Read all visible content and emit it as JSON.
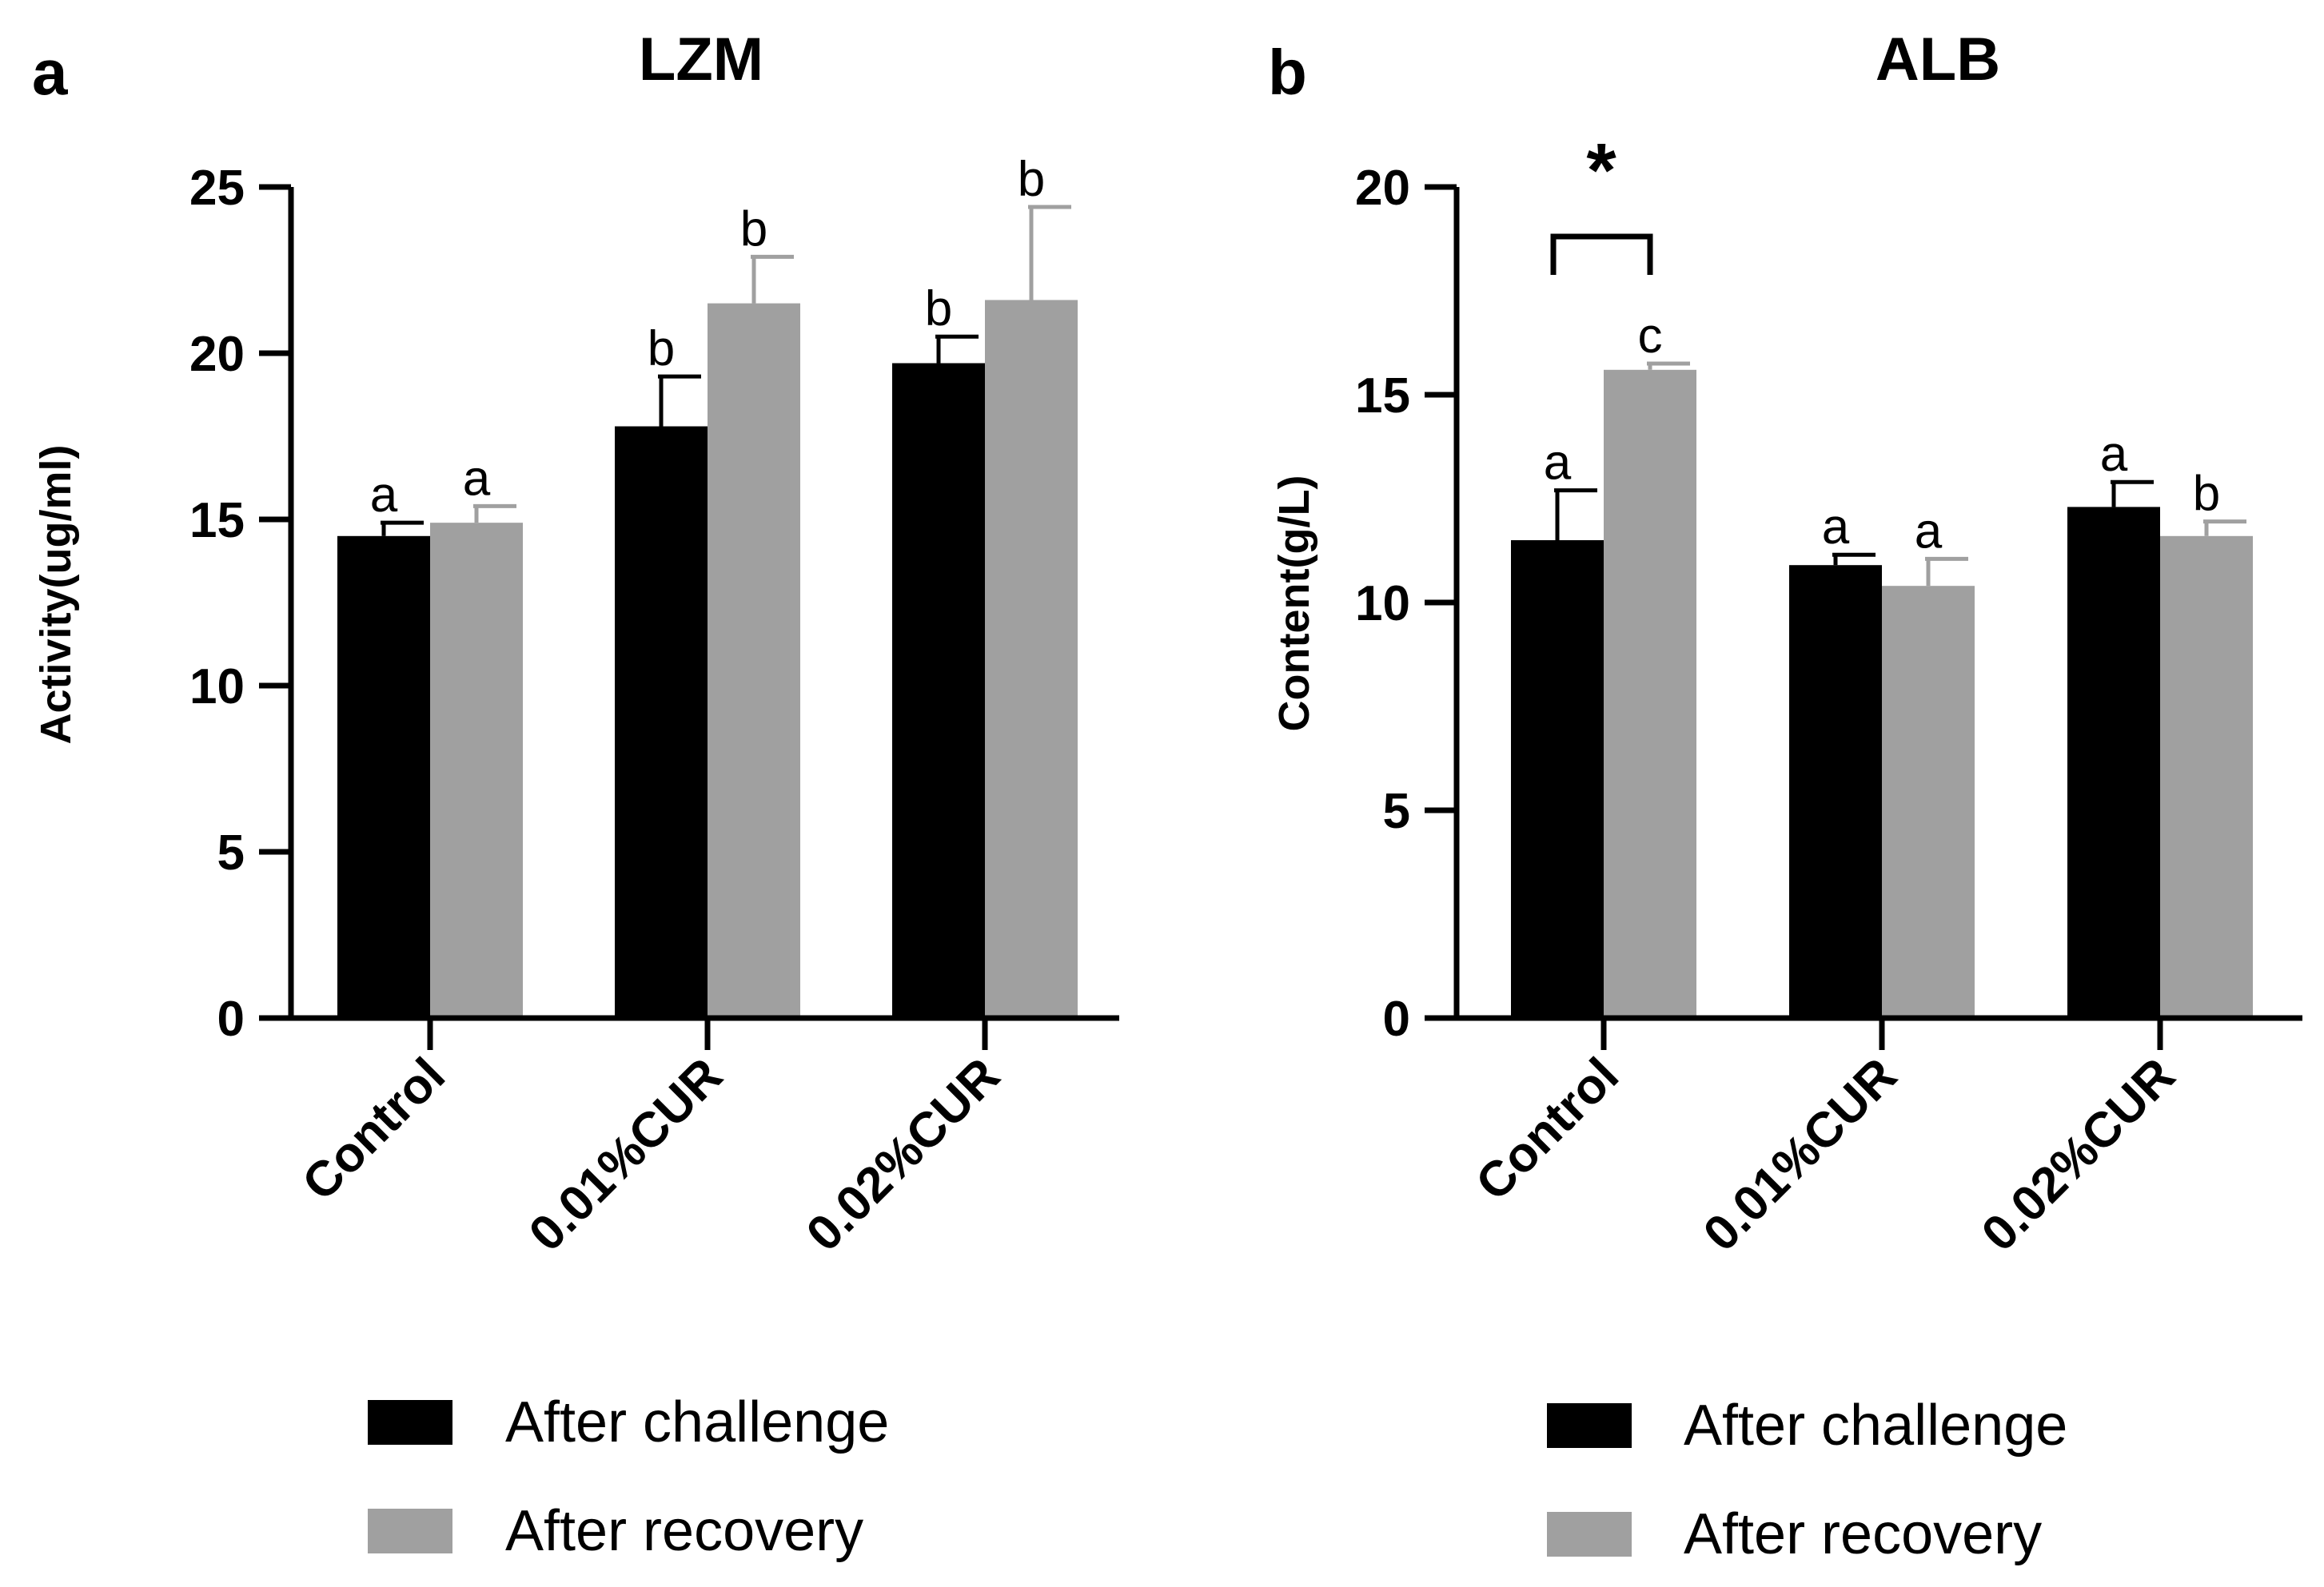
{
  "chart_data": [
    {
      "type": "bar",
      "panel": "a",
      "title": "LZM",
      "ylabel": "Activity(ug/ml)",
      "xlabel": "",
      "ylim": [
        0,
        25
      ],
      "yticks": [
        0,
        5,
        10,
        15,
        20,
        25
      ],
      "categories": [
        "Control",
        "0.01%CUR",
        "0.02%CUR"
      ],
      "series": [
        {
          "name": "After challenge",
          "color": "#000000",
          "values": [
            14.5,
            17.8,
            19.7
          ],
          "errors": [
            0.4,
            1.5,
            0.8
          ],
          "letters": [
            "a",
            "b",
            "b"
          ]
        },
        {
          "name": "After recovery",
          "color": "#a0a0a0",
          "values": [
            14.9,
            21.5,
            21.6
          ],
          "errors": [
            0.5,
            1.4,
            2.8
          ],
          "letters": [
            "a",
            "b",
            "b"
          ]
        }
      ],
      "legend": {
        "position": "bottom",
        "entries": [
          "After challenge",
          "After recovery"
        ]
      }
    },
    {
      "type": "bar",
      "panel": "b",
      "title": "ALB",
      "ylabel": "Content(g/L)",
      "xlabel": "",
      "ylim": [
        0,
        20
      ],
      "yticks": [
        0,
        5,
        10,
        15,
        20
      ],
      "categories": [
        "Control",
        "0.01%CUR",
        "0.02%CUR"
      ],
      "series": [
        {
          "name": "After challenge",
          "color": "#000000",
          "values": [
            11.5,
            10.9,
            12.3
          ],
          "errors": [
            1.2,
            0.25,
            0.6
          ],
          "letters": [
            "a",
            "a",
            "a"
          ]
        },
        {
          "name": "After recovery",
          "color": "#a0a0a0",
          "values": [
            15.6,
            10.4,
            11.6
          ],
          "errors": [
            0.15,
            0.65,
            0.35
          ],
          "letters": [
            "c",
            "a",
            "b"
          ]
        }
      ],
      "annotations": [
        {
          "type": "significance",
          "category": "Control",
          "label": "*"
        }
      ],
      "legend": {
        "position": "bottom",
        "entries": [
          "After challenge",
          "After recovery"
        ]
      }
    }
  ]
}
